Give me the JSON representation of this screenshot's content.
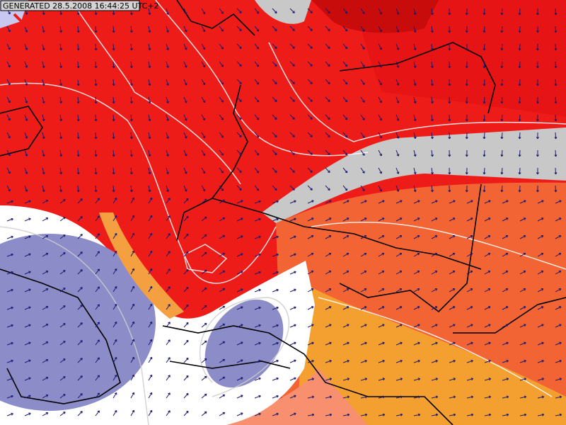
{
  "header": {
    "label": "GENERATED 28.5.2008 16:44:25 UTC+2"
  }
}
